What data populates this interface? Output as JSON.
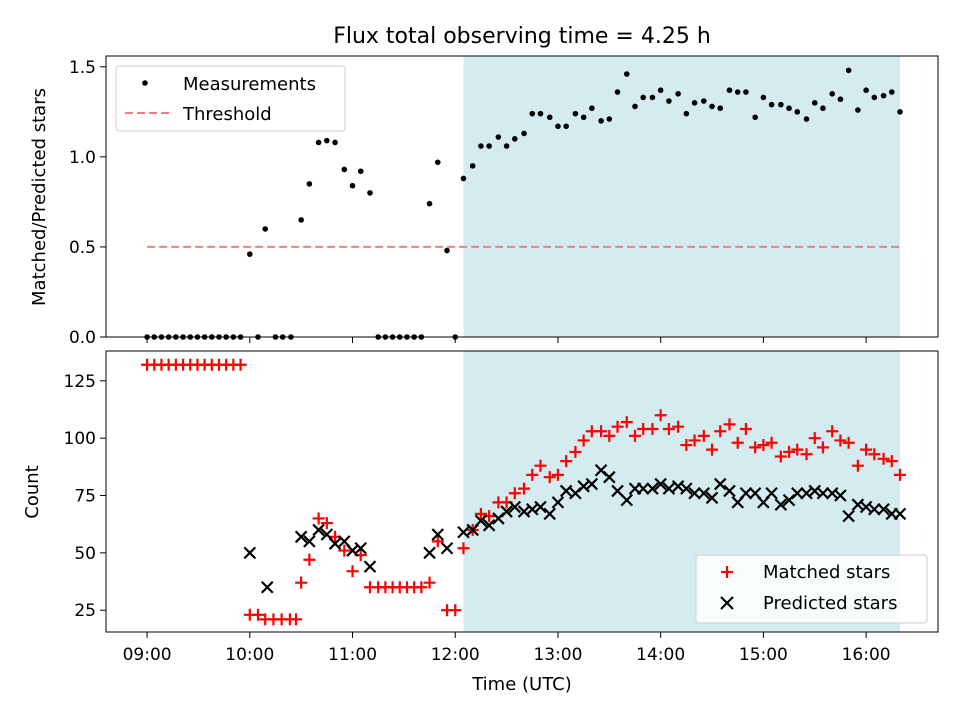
{
  "figure_title": "Flux total observing time = 4.25 h",
  "colors": {
    "shade": "#d4ebf0",
    "threshold": "#f08080",
    "matched": "#ff0000",
    "predicted": "#000000",
    "measurement": "#000000"
  },
  "chart_data": [
    {
      "type": "scatter",
      "panel": "top",
      "title": "Flux total observing time = 4.25 h",
      "ylabel": "Matched/Predicted stars",
      "xlabel": "",
      "xlim": [
        8.6,
        16.7
      ],
      "ylim": [
        0,
        1.56
      ],
      "yticks": [
        0,
        0.5,
        1.0,
        1.5
      ],
      "ytick_labels": [
        "0.0",
        "0.5",
        "1.0",
        "1.5"
      ],
      "shaded_interval": [
        12.08,
        16.33
      ],
      "legend": {
        "position": "top-left",
        "entries": [
          "Measurements",
          "Threshold"
        ]
      },
      "threshold": {
        "name": "Threshold",
        "y": 0.5,
        "x_range": [
          9.0,
          16.33
        ]
      },
      "series": [
        {
          "name": "Measurements",
          "points": [
            [
              9.0,
              0
            ],
            [
              9.07,
              0
            ],
            [
              9.14,
              0
            ],
            [
              9.21,
              0
            ],
            [
              9.28,
              0
            ],
            [
              9.35,
              0
            ],
            [
              9.42,
              0
            ],
            [
              9.49,
              0
            ],
            [
              9.56,
              0
            ],
            [
              9.63,
              0
            ],
            [
              9.7,
              0
            ],
            [
              9.77,
              0
            ],
            [
              9.84,
              0
            ],
            [
              9.91,
              0
            ],
            [
              10.0,
              0.46
            ],
            [
              10.08,
              0
            ],
            [
              10.15,
              0.6
            ],
            [
              10.25,
              0
            ],
            [
              10.32,
              0
            ],
            [
              10.4,
              0
            ],
            [
              10.5,
              0.65
            ],
            [
              10.58,
              0.85
            ],
            [
              10.67,
              1.08
            ],
            [
              10.75,
              1.09
            ],
            [
              10.83,
              1.08
            ],
            [
              10.92,
              0.93
            ],
            [
              11.0,
              0.84
            ],
            [
              11.08,
              0.92
            ],
            [
              11.17,
              0.8
            ],
            [
              11.25,
              0
            ],
            [
              11.32,
              0
            ],
            [
              11.39,
              0
            ],
            [
              11.46,
              0
            ],
            [
              11.53,
              0
            ],
            [
              11.6,
              0
            ],
            [
              11.67,
              0
            ],
            [
              11.75,
              0.74
            ],
            [
              11.83,
              0.97
            ],
            [
              11.92,
              0.48
            ],
            [
              12.0,
              0
            ],
            [
              12.08,
              0.88
            ],
            [
              12.17,
              0.95
            ],
            [
              12.25,
              1.06
            ],
            [
              12.33,
              1.06
            ],
            [
              12.42,
              1.11
            ],
            [
              12.5,
              1.06
            ],
            [
              12.58,
              1.1
            ],
            [
              12.67,
              1.13
            ],
            [
              12.75,
              1.24
            ],
            [
              12.83,
              1.24
            ],
            [
              12.92,
              1.22
            ],
            [
              13.0,
              1.17
            ],
            [
              13.08,
              1.17
            ],
            [
              13.17,
              1.24
            ],
            [
              13.25,
              1.22
            ],
            [
              13.33,
              1.27
            ],
            [
              13.42,
              1.2
            ],
            [
              13.5,
              1.21
            ],
            [
              13.58,
              1.36
            ],
            [
              13.67,
              1.46
            ],
            [
              13.75,
              1.28
            ],
            [
              13.83,
              1.33
            ],
            [
              13.92,
              1.33
            ],
            [
              14.0,
              1.37
            ],
            [
              14.08,
              1.31
            ],
            [
              14.17,
              1.35
            ],
            [
              14.25,
              1.24
            ],
            [
              14.33,
              1.3
            ],
            [
              14.42,
              1.31
            ],
            [
              14.5,
              1.28
            ],
            [
              14.58,
              1.27
            ],
            [
              14.67,
              1.37
            ],
            [
              14.75,
              1.36
            ],
            [
              14.83,
              1.36
            ],
            [
              14.92,
              1.22
            ],
            [
              15.0,
              1.33
            ],
            [
              15.08,
              1.29
            ],
            [
              15.17,
              1.29
            ],
            [
              15.25,
              1.27
            ],
            [
              15.33,
              1.25
            ],
            [
              15.42,
              1.21
            ],
            [
              15.5,
              1.3
            ],
            [
              15.58,
              1.27
            ],
            [
              15.67,
              1.35
            ],
            [
              15.75,
              1.32
            ],
            [
              15.83,
              1.48
            ],
            [
              15.92,
              1.26
            ],
            [
              16.0,
              1.37
            ],
            [
              16.08,
              1.33
            ],
            [
              16.17,
              1.34
            ],
            [
              16.25,
              1.36
            ],
            [
              16.33,
              1.25
            ]
          ]
        }
      ]
    },
    {
      "type": "scatter",
      "panel": "bottom",
      "title": "",
      "ylabel": "Count",
      "xlabel": "Time (UTC)",
      "xlim": [
        8.6,
        16.7
      ],
      "ylim": [
        15.5,
        138
      ],
      "yticks": [
        25,
        50,
        75,
        100,
        125
      ],
      "ytick_labels": [
        "25",
        "50",
        "75",
        "100",
        "125"
      ],
      "xticks": [
        9,
        10,
        11,
        12,
        13,
        14,
        15,
        16
      ],
      "xtick_labels": [
        "09:00",
        "10:00",
        "11:00",
        "12:00",
        "13:00",
        "14:00",
        "15:00",
        "16:00"
      ],
      "shaded_interval": [
        12.08,
        16.33
      ],
      "legend": {
        "position": "bottom-right",
        "entries": [
          "Matched stars",
          "Predicted stars"
        ]
      },
      "series": [
        {
          "name": "Matched stars",
          "marker": "plus",
          "points": [
            [
              9.0,
              132
            ],
            [
              9.07,
              132
            ],
            [
              9.14,
              132
            ],
            [
              9.21,
              132
            ],
            [
              9.28,
              132
            ],
            [
              9.35,
              132
            ],
            [
              9.42,
              132
            ],
            [
              9.49,
              132
            ],
            [
              9.56,
              132
            ],
            [
              9.63,
              132
            ],
            [
              9.7,
              132
            ],
            [
              9.77,
              132
            ],
            [
              9.84,
              132
            ],
            [
              9.91,
              132
            ],
            [
              10.0,
              23
            ],
            [
              10.08,
              23
            ],
            [
              10.15,
              21
            ],
            [
              10.23,
              21
            ],
            [
              10.31,
              21
            ],
            [
              10.39,
              21
            ],
            [
              10.45,
              21
            ],
            [
              10.5,
              37
            ],
            [
              10.58,
              47
            ],
            [
              10.67,
              65
            ],
            [
              10.75,
              63
            ],
            [
              10.83,
              57
            ],
            [
              10.92,
              51
            ],
            [
              11.0,
              42
            ],
            [
              11.08,
              49
            ],
            [
              11.17,
              35
            ],
            [
              11.25,
              35
            ],
            [
              11.32,
              35
            ],
            [
              11.39,
              35
            ],
            [
              11.46,
              35
            ],
            [
              11.53,
              35
            ],
            [
              11.6,
              35
            ],
            [
              11.67,
              35
            ],
            [
              11.75,
              37
            ],
            [
              11.83,
              55
            ],
            [
              11.92,
              25
            ],
            [
              12.0,
              25
            ],
            [
              12.08,
              52
            ],
            [
              12.17,
              60
            ],
            [
              12.25,
              67
            ],
            [
              12.33,
              66
            ],
            [
              12.42,
              72
            ],
            [
              12.5,
              72
            ],
            [
              12.58,
              76
            ],
            [
              12.67,
              78
            ],
            [
              12.75,
              84
            ],
            [
              12.83,
              88
            ],
            [
              12.92,
              83
            ],
            [
              13.0,
              84
            ],
            [
              13.08,
              90
            ],
            [
              13.17,
              94
            ],
            [
              13.25,
              99
            ],
            [
              13.33,
              103
            ],
            [
              13.42,
              103
            ],
            [
              13.5,
              101
            ],
            [
              13.58,
              105
            ],
            [
              13.67,
              107
            ],
            [
              13.75,
              101
            ],
            [
              13.83,
              104
            ],
            [
              13.92,
              104
            ],
            [
              14.0,
              110
            ],
            [
              14.08,
              104
            ],
            [
              14.17,
              105
            ],
            [
              14.25,
              97
            ],
            [
              14.33,
              99
            ],
            [
              14.42,
              101
            ],
            [
              14.5,
              95
            ],
            [
              14.58,
              103
            ],
            [
              14.67,
              106
            ],
            [
              14.75,
              98
            ],
            [
              14.83,
              104
            ],
            [
              14.92,
              96
            ],
            [
              15.0,
              97
            ],
            [
              15.08,
              98
            ],
            [
              15.17,
              92
            ],
            [
              15.25,
              94
            ],
            [
              15.33,
              95
            ],
            [
              15.42,
              93
            ],
            [
              15.5,
              100
            ],
            [
              15.58,
              96
            ],
            [
              15.67,
              103
            ],
            [
              15.75,
              99
            ],
            [
              15.83,
              98
            ],
            [
              15.92,
              88
            ],
            [
              16.0,
              95
            ],
            [
              16.08,
              93
            ],
            [
              16.17,
              91
            ],
            [
              16.25,
              90
            ],
            [
              16.33,
              84
            ]
          ]
        },
        {
          "name": "Predicted stars",
          "marker": "x",
          "points": [
            [
              10.0,
              50
            ],
            [
              10.17,
              35
            ],
            [
              10.5,
              57
            ],
            [
              10.58,
              55
            ],
            [
              10.67,
              60
            ],
            [
              10.75,
              58
            ],
            [
              10.83,
              54
            ],
            [
              10.92,
              55
            ],
            [
              11.0,
              51
            ],
            [
              11.08,
              52
            ],
            [
              11.17,
              44
            ],
            [
              11.75,
              50
            ],
            [
              11.83,
              58
            ],
            [
              11.92,
              52
            ],
            [
              12.08,
              59
            ],
            [
              12.17,
              60
            ],
            [
              12.25,
              64
            ],
            [
              12.33,
              62
            ],
            [
              12.42,
              65
            ],
            [
              12.5,
              68
            ],
            [
              12.58,
              70
            ],
            [
              12.67,
              68
            ],
            [
              12.75,
              69
            ],
            [
              12.83,
              70
            ],
            [
              12.92,
              67
            ],
            [
              13.0,
              72
            ],
            [
              13.08,
              77
            ],
            [
              13.17,
              76
            ],
            [
              13.25,
              79
            ],
            [
              13.33,
              80
            ],
            [
              13.42,
              86
            ],
            [
              13.5,
              83
            ],
            [
              13.58,
              77
            ],
            [
              13.67,
              73
            ],
            [
              13.75,
              78
            ],
            [
              13.83,
              78
            ],
            [
              13.92,
              78
            ],
            [
              14.0,
              80
            ],
            [
              14.08,
              78
            ],
            [
              14.17,
              79
            ],
            [
              14.25,
              78
            ],
            [
              14.33,
              76
            ],
            [
              14.42,
              76
            ],
            [
              14.5,
              74
            ],
            [
              14.58,
              80
            ],
            [
              14.67,
              77
            ],
            [
              14.75,
              72
            ],
            [
              14.83,
              76
            ],
            [
              14.92,
              76
            ],
            [
              15.0,
              72
            ],
            [
              15.08,
              76
            ],
            [
              15.17,
              71
            ],
            [
              15.25,
              73
            ],
            [
              15.33,
              76
            ],
            [
              15.42,
              76
            ],
            [
              15.5,
              77
            ],
            [
              15.58,
              76
            ],
            [
              15.67,
              76
            ],
            [
              15.75,
              75
            ],
            [
              15.83,
              66
            ],
            [
              15.92,
              71
            ],
            [
              16.0,
              70
            ],
            [
              16.08,
              69
            ],
            [
              16.17,
              69
            ],
            [
              16.25,
              67
            ],
            [
              16.33,
              67
            ]
          ]
        }
      ]
    }
  ]
}
